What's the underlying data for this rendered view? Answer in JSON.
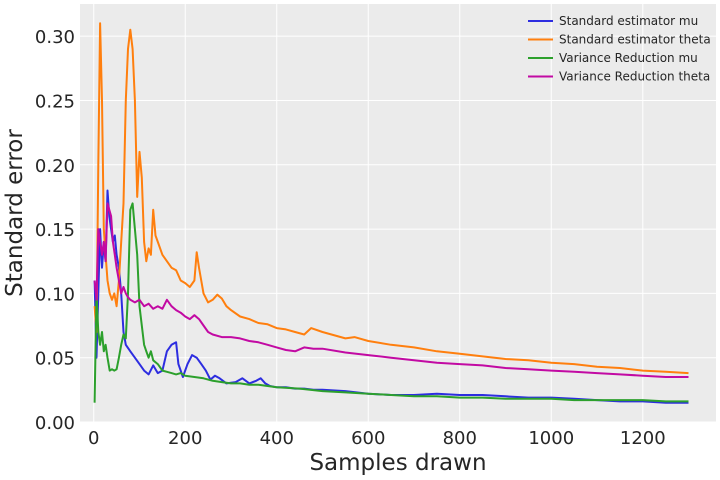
{
  "chart_data": {
    "type": "line",
    "title": "",
    "xlabel": "Samples drawn",
    "ylabel": "Standard error",
    "xlim": [
      -30,
      1360
    ],
    "ylim": [
      0,
      0.325
    ],
    "xticks": [
      0,
      200,
      400,
      600,
      800,
      1000,
      1200
    ],
    "xtick_labels": [
      "0",
      "200",
      "400",
      "600",
      "800",
      "1000",
      "1200"
    ],
    "yticks": [
      0,
      0.05,
      0.1,
      0.15,
      0.2,
      0.25,
      0.3
    ],
    "ytick_labels": [
      "0.00",
      "0.05",
      "0.10",
      "0.15",
      "0.20",
      "0.25",
      "0.30"
    ],
    "grid": true,
    "legend_position": "top-right",
    "background": "#ebebeb",
    "series": [
      {
        "name": "Standard estimator mu",
        "color": "#2d2de0",
        "points": [
          [
            2,
            0.11
          ],
          [
            6,
            0.05
          ],
          [
            10,
            0.1
          ],
          [
            14,
            0.15
          ],
          [
            18,
            0.12
          ],
          [
            22,
            0.14
          ],
          [
            26,
            0.125
          ],
          [
            30,
            0.18
          ],
          [
            34,
            0.16
          ],
          [
            38,
            0.15
          ],
          [
            42,
            0.14
          ],
          [
            46,
            0.145
          ],
          [
            50,
            0.13
          ],
          [
            55,
            0.12
          ],
          [
            60,
            0.1
          ],
          [
            65,
            0.07
          ],
          [
            70,
            0.06
          ],
          [
            80,
            0.055
          ],
          [
            90,
            0.05
          ],
          [
            100,
            0.045
          ],
          [
            110,
            0.04
          ],
          [
            120,
            0.037
          ],
          [
            130,
            0.044
          ],
          [
            140,
            0.038
          ],
          [
            150,
            0.04
          ],
          [
            160,
            0.055
          ],
          [
            170,
            0.06
          ],
          [
            180,
            0.062
          ],
          [
            185,
            0.045
          ],
          [
            195,
            0.035
          ],
          [
            205,
            0.045
          ],
          [
            215,
            0.052
          ],
          [
            225,
            0.05
          ],
          [
            235,
            0.045
          ],
          [
            245,
            0.04
          ],
          [
            255,
            0.033
          ],
          [
            265,
            0.036
          ],
          [
            275,
            0.034
          ],
          [
            290,
            0.03
          ],
          [
            310,
            0.031
          ],
          [
            325,
            0.034
          ],
          [
            340,
            0.03
          ],
          [
            355,
            0.032
          ],
          [
            365,
            0.034
          ],
          [
            375,
            0.03
          ],
          [
            385,
            0.028
          ],
          [
            400,
            0.027
          ],
          [
            420,
            0.027
          ],
          [
            440,
            0.026
          ],
          [
            460,
            0.026
          ],
          [
            480,
            0.025
          ],
          [
            500,
            0.025
          ],
          [
            550,
            0.024
          ],
          [
            600,
            0.022
          ],
          [
            650,
            0.021
          ],
          [
            700,
            0.021
          ],
          [
            750,
            0.022
          ],
          [
            800,
            0.021
          ],
          [
            850,
            0.021
          ],
          [
            900,
            0.02
          ],
          [
            950,
            0.019
          ],
          [
            1000,
            0.019
          ],
          [
            1050,
            0.018
          ],
          [
            1100,
            0.017
          ],
          [
            1150,
            0.016
          ],
          [
            1200,
            0.016
          ],
          [
            1250,
            0.015
          ],
          [
            1300,
            0.015
          ]
        ]
      },
      {
        "name": "Standard estimator theta",
        "color": "#ff7f0e",
        "points": [
          [
            2,
            0.09
          ],
          [
            6,
            0.07
          ],
          [
            10,
            0.2
          ],
          [
            14,
            0.31
          ],
          [
            18,
            0.25
          ],
          [
            22,
            0.15
          ],
          [
            26,
            0.13
          ],
          [
            30,
            0.11
          ],
          [
            35,
            0.1
          ],
          [
            40,
            0.095
          ],
          [
            45,
            0.1
          ],
          [
            50,
            0.09
          ],
          [
            55,
            0.11
          ],
          [
            60,
            0.14
          ],
          [
            65,
            0.17
          ],
          [
            70,
            0.25
          ],
          [
            75,
            0.29
          ],
          [
            80,
            0.305
          ],
          [
            85,
            0.29
          ],
          [
            90,
            0.25
          ],
          [
            95,
            0.175
          ],
          [
            100,
            0.21
          ],
          [
            105,
            0.19
          ],
          [
            110,
            0.14
          ],
          [
            115,
            0.125
          ],
          [
            120,
            0.135
          ],
          [
            125,
            0.13
          ],
          [
            130,
            0.165
          ],
          [
            135,
            0.145
          ],
          [
            140,
            0.14
          ],
          [
            150,
            0.13
          ],
          [
            160,
            0.125
          ],
          [
            170,
            0.12
          ],
          [
            180,
            0.118
          ],
          [
            190,
            0.11
          ],
          [
            200,
            0.108
          ],
          [
            210,
            0.105
          ],
          [
            220,
            0.11
          ],
          [
            225,
            0.132
          ],
          [
            230,
            0.12
          ],
          [
            240,
            0.1
          ],
          [
            250,
            0.093
          ],
          [
            260,
            0.095
          ],
          [
            270,
            0.099
          ],
          [
            280,
            0.096
          ],
          [
            290,
            0.09
          ],
          [
            300,
            0.087
          ],
          [
            320,
            0.082
          ],
          [
            340,
            0.08
          ],
          [
            360,
            0.077
          ],
          [
            380,
            0.076
          ],
          [
            400,
            0.073
          ],
          [
            420,
            0.072
          ],
          [
            440,
            0.07
          ],
          [
            460,
            0.068
          ],
          [
            475,
            0.073
          ],
          [
            500,
            0.07
          ],
          [
            550,
            0.065
          ],
          [
            570,
            0.066
          ],
          [
            600,
            0.063
          ],
          [
            650,
            0.06
          ],
          [
            700,
            0.058
          ],
          [
            750,
            0.055
          ],
          [
            800,
            0.053
          ],
          [
            850,
            0.051
          ],
          [
            900,
            0.049
          ],
          [
            950,
            0.048
          ],
          [
            1000,
            0.046
          ],
          [
            1050,
            0.045
          ],
          [
            1100,
            0.043
          ],
          [
            1150,
            0.042
          ],
          [
            1200,
            0.04
          ],
          [
            1250,
            0.039
          ],
          [
            1300,
            0.038
          ]
        ]
      },
      {
        "name": "Variance Reduction mu",
        "color": "#2ca02c",
        "points": [
          [
            2,
            0.015
          ],
          [
            6,
            0.1
          ],
          [
            10,
            0.07
          ],
          [
            14,
            0.06
          ],
          [
            18,
            0.07
          ],
          [
            22,
            0.055
          ],
          [
            26,
            0.06
          ],
          [
            30,
            0.05
          ],
          [
            35,
            0.04
          ],
          [
            40,
            0.041
          ],
          [
            45,
            0.04
          ],
          [
            50,
            0.041
          ],
          [
            55,
            0.05
          ],
          [
            60,
            0.06
          ],
          [
            65,
            0.068
          ],
          [
            70,
            0.065
          ],
          [
            75,
            0.1
          ],
          [
            80,
            0.165
          ],
          [
            85,
            0.17
          ],
          [
            90,
            0.15
          ],
          [
            95,
            0.13
          ],
          [
            100,
            0.09
          ],
          [
            105,
            0.075
          ],
          [
            110,
            0.06
          ],
          [
            115,
            0.055
          ],
          [
            120,
            0.05
          ],
          [
            125,
            0.055
          ],
          [
            130,
            0.048
          ],
          [
            140,
            0.045
          ],
          [
            150,
            0.04
          ],
          [
            160,
            0.039
          ],
          [
            170,
            0.038
          ],
          [
            180,
            0.037
          ],
          [
            190,
            0.038
          ],
          [
            200,
            0.036
          ],
          [
            220,
            0.035
          ],
          [
            240,
            0.034
          ],
          [
            260,
            0.032
          ],
          [
            280,
            0.031
          ],
          [
            300,
            0.03
          ],
          [
            320,
            0.03
          ],
          [
            340,
            0.029
          ],
          [
            360,
            0.029
          ],
          [
            380,
            0.028
          ],
          [
            400,
            0.027
          ],
          [
            450,
            0.026
          ],
          [
            500,
            0.024
          ],
          [
            550,
            0.023
          ],
          [
            600,
            0.022
          ],
          [
            650,
            0.021
          ],
          [
            700,
            0.02
          ],
          [
            750,
            0.02
          ],
          [
            800,
            0.019
          ],
          [
            850,
            0.019
          ],
          [
            900,
            0.018
          ],
          [
            950,
            0.018
          ],
          [
            1000,
            0.018
          ],
          [
            1050,
            0.017
          ],
          [
            1100,
            0.017
          ],
          [
            1150,
            0.017
          ],
          [
            1200,
            0.017
          ],
          [
            1250,
            0.016
          ],
          [
            1300,
            0.016
          ]
        ]
      },
      {
        "name": "Variance Reduction theta",
        "color": "#c20aa3",
        "points": [
          [
            2,
            0.11
          ],
          [
            6,
            0.095
          ],
          [
            10,
            0.15
          ],
          [
            14,
            0.14
          ],
          [
            18,
            0.13
          ],
          [
            22,
            0.14
          ],
          [
            26,
            0.125
          ],
          [
            30,
            0.17
          ],
          [
            34,
            0.165
          ],
          [
            38,
            0.16
          ],
          [
            42,
            0.14
          ],
          [
            46,
            0.13
          ],
          [
            50,
            0.12
          ],
          [
            55,
            0.11
          ],
          [
            60,
            0.1
          ],
          [
            65,
            0.105
          ],
          [
            70,
            0.1
          ],
          [
            75,
            0.097
          ],
          [
            80,
            0.095
          ],
          [
            90,
            0.093
          ],
          [
            100,
            0.095
          ],
          [
            110,
            0.09
          ],
          [
            120,
            0.092
          ],
          [
            130,
            0.088
          ],
          [
            140,
            0.09
          ],
          [
            150,
            0.088
          ],
          [
            160,
            0.095
          ],
          [
            170,
            0.09
          ],
          [
            180,
            0.087
          ],
          [
            190,
            0.085
          ],
          [
            200,
            0.082
          ],
          [
            210,
            0.08
          ],
          [
            220,
            0.083
          ],
          [
            230,
            0.08
          ],
          [
            240,
            0.075
          ],
          [
            250,
            0.07
          ],
          [
            260,
            0.068
          ],
          [
            280,
            0.066
          ],
          [
            300,
            0.066
          ],
          [
            320,
            0.065
          ],
          [
            340,
            0.063
          ],
          [
            360,
            0.062
          ],
          [
            380,
            0.06
          ],
          [
            400,
            0.058
          ],
          [
            420,
            0.056
          ],
          [
            440,
            0.055
          ],
          [
            460,
            0.058
          ],
          [
            480,
            0.057
          ],
          [
            500,
            0.057
          ],
          [
            550,
            0.054
          ],
          [
            600,
            0.052
          ],
          [
            650,
            0.05
          ],
          [
            700,
            0.048
          ],
          [
            750,
            0.046
          ],
          [
            800,
            0.045
          ],
          [
            850,
            0.044
          ],
          [
            900,
            0.042
          ],
          [
            950,
            0.041
          ],
          [
            1000,
            0.04
          ],
          [
            1050,
            0.039
          ],
          [
            1100,
            0.038
          ],
          [
            1150,
            0.037
          ],
          [
            1200,
            0.036
          ],
          [
            1250,
            0.035
          ],
          [
            1300,
            0.035
          ]
        ]
      }
    ]
  }
}
